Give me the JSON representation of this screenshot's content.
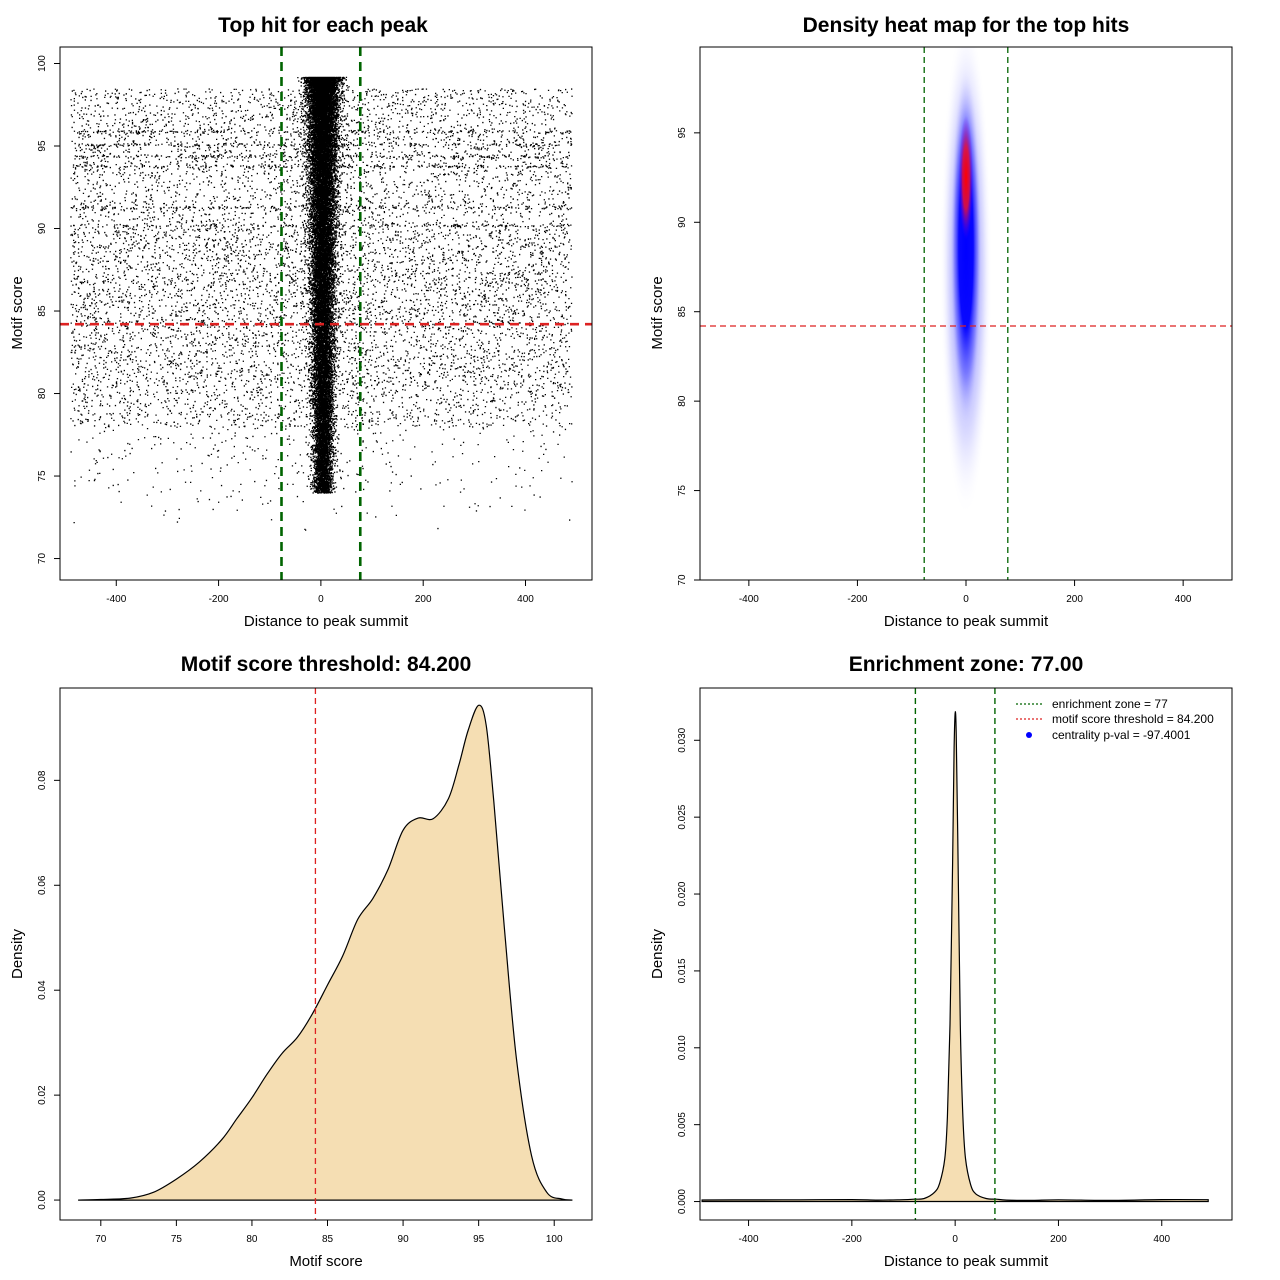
{
  "chart_data": [
    {
      "type": "scatter",
      "title": "Top hit for each peak",
      "xlabel": "Distance to peak summit",
      "ylabel": "Motif score",
      "xlim": [
        -510,
        530
      ],
      "ylim": [
        68.7,
        101.0
      ],
      "x_ticks": [
        -400,
        -200,
        0,
        200,
        400
      ],
      "y_ticks": [
        70,
        75,
        80,
        85,
        90,
        95,
        100
      ],
      "x_tick_labels": [
        "-400",
        "-200",
        "0",
        "200",
        "400"
      ],
      "y_tick_labels": [
        "70",
        "75",
        "80",
        "85",
        "90",
        "95",
        "100"
      ],
      "background_x_range": [
        -490,
        490
      ],
      "background_y_range": [
        71.5,
        98.5
      ],
      "center_mean_x": 3,
      "center_sd_x": 15,
      "center_y_range": [
        74.0,
        99.2
      ],
      "approx_point_count": 30000,
      "score_threshold": 84.2,
      "enrichment_zone": [
        -77,
        77
      ],
      "threshold_color": "#dd2222",
      "zone_color": "#006400",
      "point_color": "#000000"
    },
    {
      "type": "heatmap",
      "title": "Density heat map for the top hits",
      "xlabel": "Distance to peak summit",
      "ylabel": "Motif score",
      "xlim": [
        -490,
        490
      ],
      "ylim": [
        70.0,
        99.8
      ],
      "x_ticks": [
        -400,
        -200,
        0,
        200,
        400
      ],
      "y_ticks": [
        70,
        75,
        80,
        85,
        90,
        95
      ],
      "x_tick_labels": [
        "-400",
        "-200",
        "0",
        "200",
        "400"
      ],
      "y_tick_labels": [
        "70",
        "75",
        "80",
        "85",
        "90",
        "95"
      ],
      "hotspot_x": 0,
      "hotspot_y_range": [
        83.0,
        96.5
      ],
      "score_threshold": 84.2,
      "enrichment_zone": [
        -77,
        77
      ],
      "color_scale": [
        "#ffffff",
        "#0000ff",
        "#ff0000"
      ]
    },
    {
      "type": "area",
      "title": "Motif score threshold: 84.200",
      "xlabel": "Motif score",
      "ylabel": "Density",
      "xlim": [
        67.3,
        102.5
      ],
      "ylim": [
        -0.0038,
        0.0976
      ],
      "x_ticks": [
        70,
        75,
        80,
        85,
        90,
        95,
        100
      ],
      "y_ticks": [
        0.0,
        0.02,
        0.04,
        0.06,
        0.08
      ],
      "x_tick_labels": [
        "70",
        "75",
        "80",
        "85",
        "90",
        "95",
        "100"
      ],
      "y_tick_labels": [
        "0.00",
        "0.02",
        "0.04",
        "0.06",
        "0.08"
      ],
      "x": [
        68.5,
        70,
        72,
        73.5,
        75,
        76.5,
        78,
        79,
        80,
        81,
        82,
        83,
        84,
        85,
        86,
        87,
        88,
        89,
        90,
        91,
        92,
        93,
        93.7,
        94.3,
        95,
        95.5,
        96,
        96.7,
        97.5,
        98.5,
        99.5,
        100.5,
        101.2
      ],
      "y": [
        0.0,
        0.0001,
        0.0004,
        0.0015,
        0.004,
        0.0072,
        0.0115,
        0.0155,
        0.0195,
        0.024,
        0.028,
        0.031,
        0.0355,
        0.041,
        0.0465,
        0.0535,
        0.0575,
        0.063,
        0.0705,
        0.0728,
        0.0727,
        0.0765,
        0.083,
        0.0895,
        0.0943,
        0.0905,
        0.076,
        0.052,
        0.027,
        0.0085,
        0.0015,
        0.0002,
        0.0
      ],
      "threshold": 84.2,
      "fill_color": "#f5deb3",
      "threshold_color": "#dd2222"
    },
    {
      "type": "area",
      "title": "Enrichment zone: 77.00",
      "xlabel": "Distance to peak summit",
      "ylabel": "Density",
      "xlim": [
        -494,
        536
      ],
      "ylim": [
        -0.0012,
        0.0334
      ],
      "x_ticks": [
        -400,
        -200,
        0,
        200,
        400
      ],
      "y_ticks": [
        0.0,
        0.005,
        0.01,
        0.015,
        0.02,
        0.025,
        0.03
      ],
      "x_tick_labels": [
        "-400",
        "-200",
        "0",
        "200",
        "400"
      ],
      "y_tick_labels": [
        "0.000",
        "0.005",
        "0.010",
        "0.015",
        "0.020",
        "0.025",
        "0.030"
      ],
      "x": [
        -490,
        -400,
        -300,
        -200,
        -150,
        -100,
        -80,
        -60,
        -40,
        -30,
        -20,
        -15,
        -10,
        -5,
        -2,
        0,
        2,
        5,
        10,
        15,
        20,
        30,
        40,
        60,
        80,
        100,
        150,
        200,
        300,
        400,
        490
      ],
      "y": [
        0.0001,
        0.0001,
        0.0001,
        0.0001,
        0.0001,
        0.00012,
        0.00015,
        0.0002,
        0.0006,
        0.0012,
        0.0028,
        0.0055,
        0.0115,
        0.022,
        0.0295,
        0.0318,
        0.0305,
        0.024,
        0.0115,
        0.0055,
        0.0028,
        0.0011,
        0.0005,
        0.0002,
        0.00015,
        0.00012,
        0.0001,
        0.0001,
        0.0001,
        0.0001,
        0.0001
      ],
      "enrichment_zone": [
        -77,
        77
      ],
      "fill_color": "#f5deb3",
      "zone_color": "#006400",
      "threshold_color": "#dd2222",
      "pval_color": "#0000ff",
      "legend": [
        {
          "label": "enrichment zone = 77",
          "style": "dotted-line",
          "color": "#006400"
        },
        {
          "label": "motif score threshold = 84.200",
          "style": "dotted-line",
          "color": "#dd2222"
        },
        {
          "label": "centrality p-val = -97.4001",
          "style": "point",
          "color": "#0000ff"
        }
      ],
      "legend_position": "top-right"
    }
  ]
}
